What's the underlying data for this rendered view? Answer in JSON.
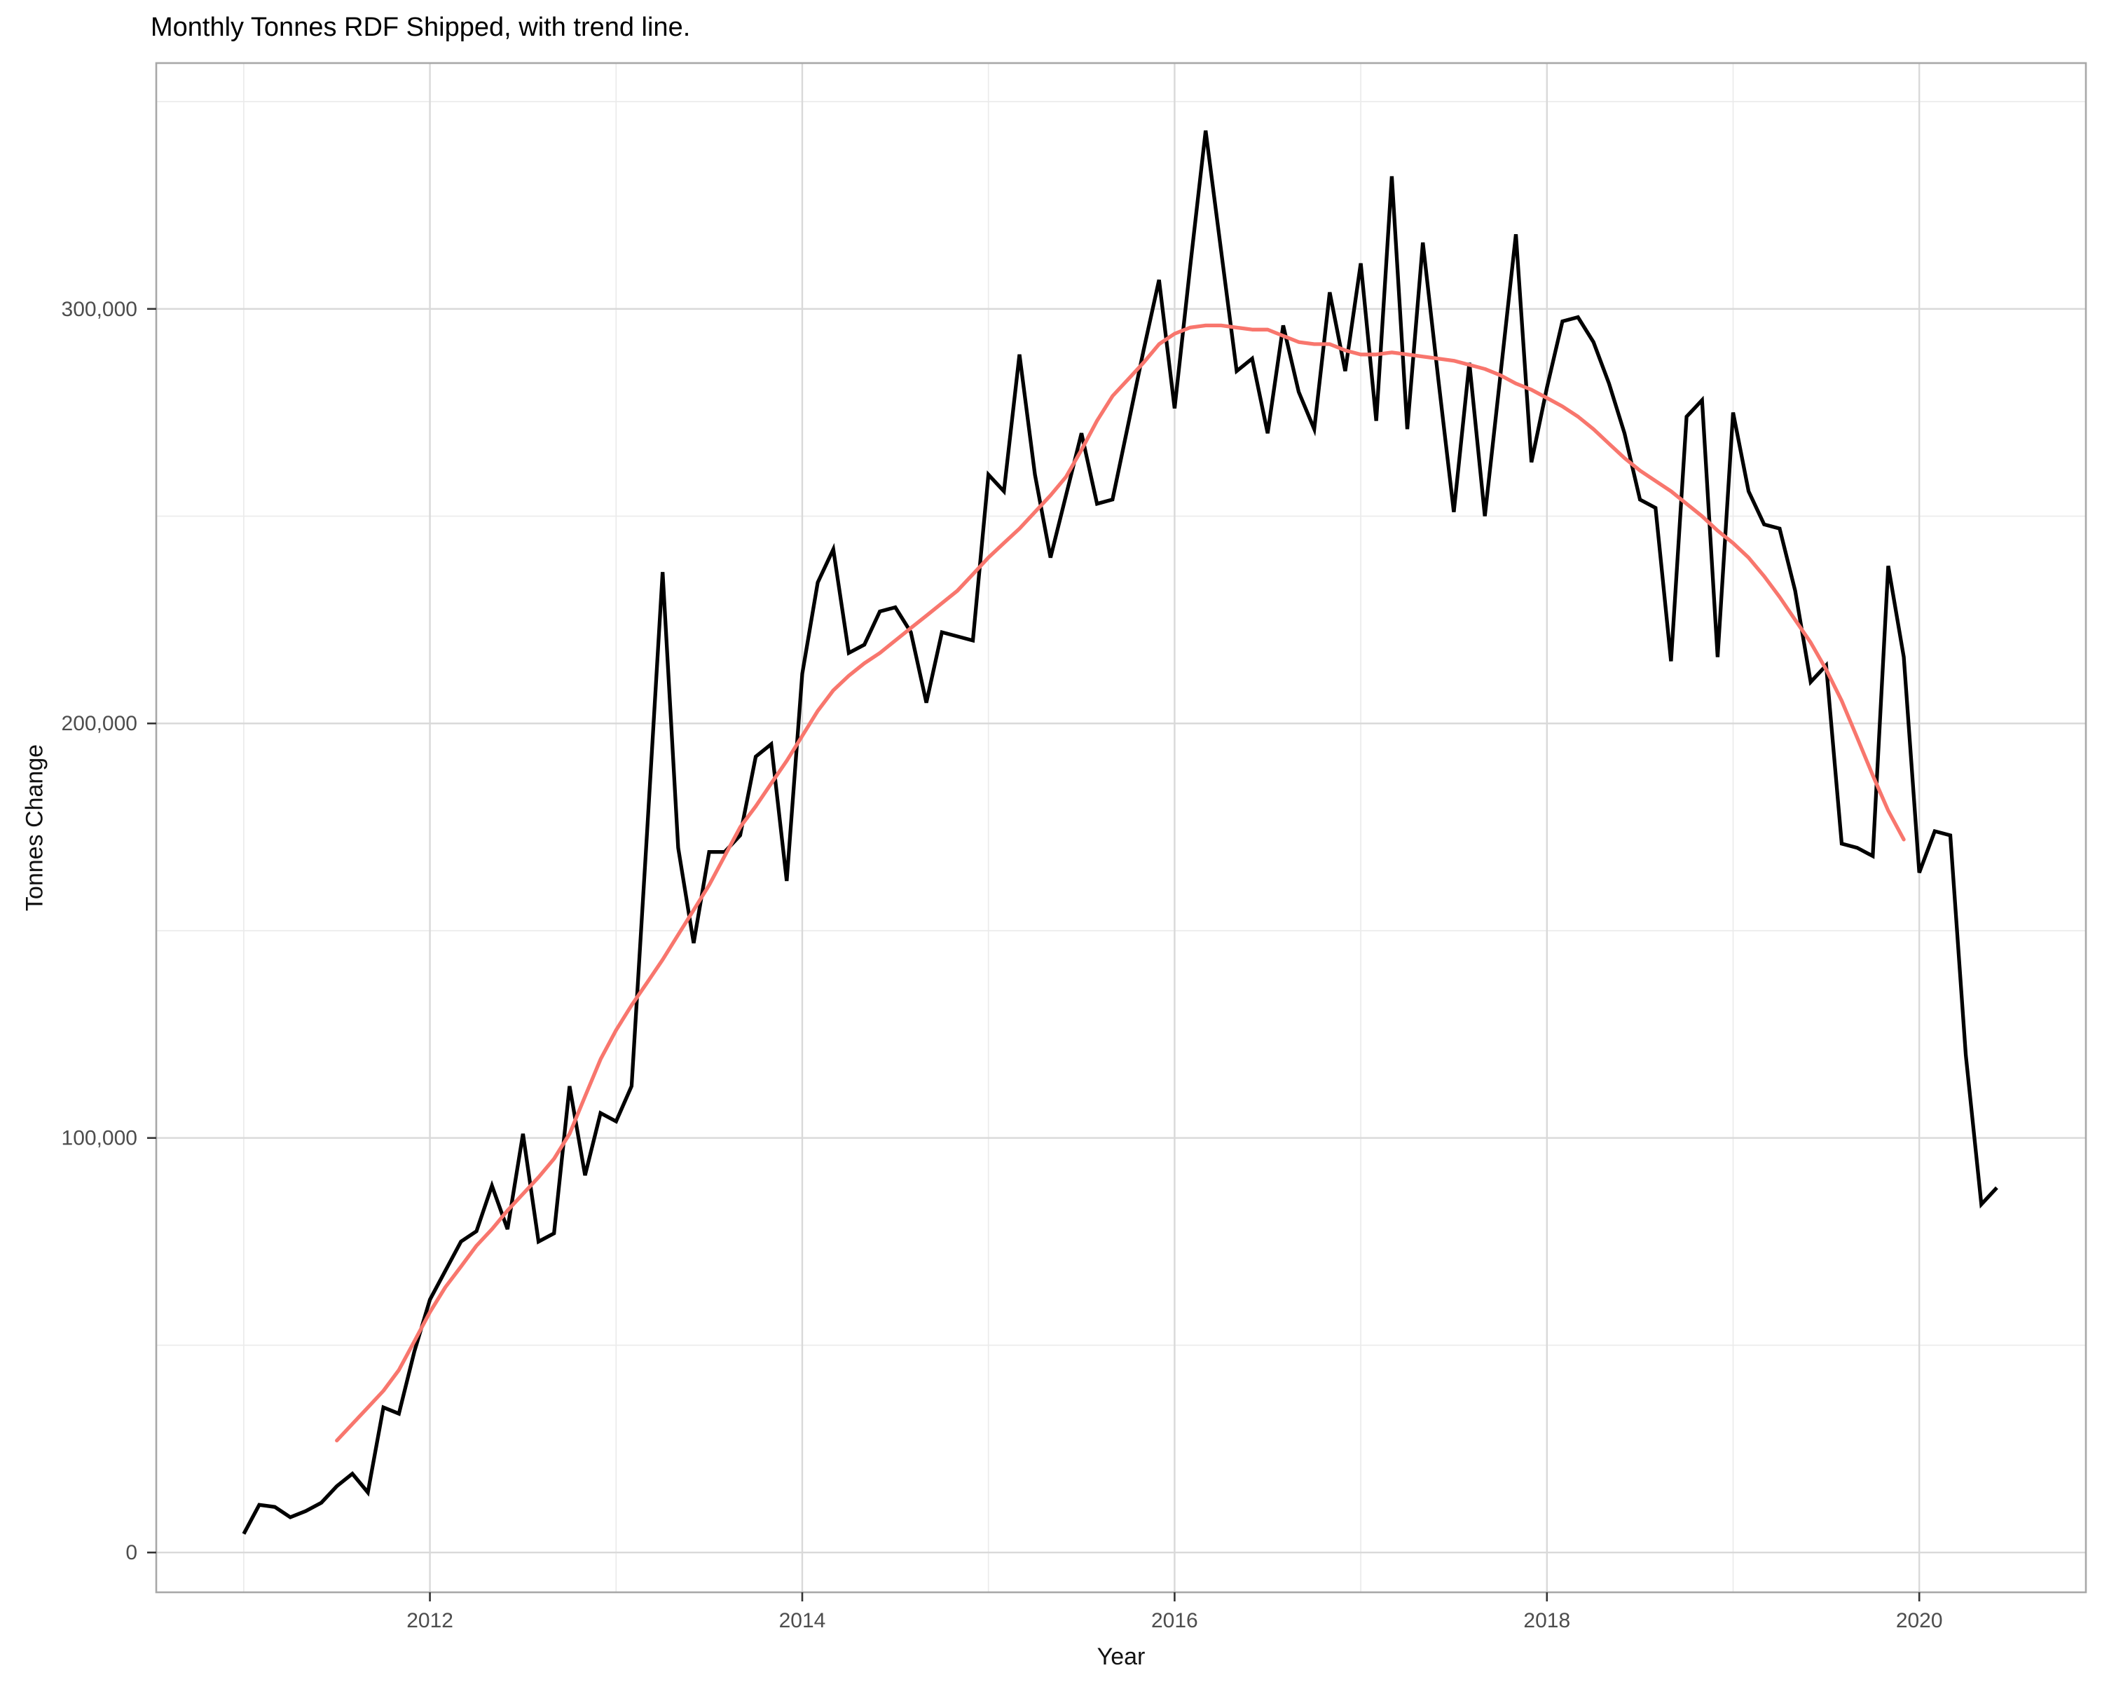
{
  "chart_data": {
    "type": "line",
    "title": "Monthly Tonnes RDF Shipped, with trend line.",
    "xlabel": "Year",
    "ylabel": "Tonnes Change",
    "grid": "on",
    "legend": "none",
    "x_range": [
      2010.53,
      2020.895
    ],
    "y_range": [
      -9600,
      359300
    ],
    "x_ticks": {
      "major": [
        2012,
        2014,
        2016,
        2018,
        2020
      ],
      "minor": [
        2011,
        2013,
        2015,
        2017,
        2019
      ],
      "labels": [
        "2012",
        "2014",
        "2016",
        "2018",
        "2020"
      ]
    },
    "y_ticks": {
      "major": [
        0,
        100000,
        200000,
        300000
      ],
      "minor": [
        50000,
        150000,
        250000,
        350000
      ],
      "labels": [
        "0",
        "100,000",
        "200,000",
        "300,000"
      ]
    },
    "colors": {
      "series": "#000000",
      "trend": "#F8766D",
      "grid_major": "#d9d9d9",
      "grid_minor": "#ebebeb",
      "panel_border": "#a8a8a8",
      "tick_mark": "#333333",
      "tick_label": "#4d4d4d"
    },
    "series": [
      {
        "name": "monthly-tonnes-shipped",
        "color": "#000000",
        "start_year": 2011,
        "start_month": 1,
        "frequency": "monthly",
        "values": [
          4500,
          11500,
          11000,
          8500,
          10000,
          12000,
          16000,
          19000,
          14500,
          35000,
          33500,
          48500,
          61000,
          68000,
          75000,
          77500,
          88500,
          78000,
          101000,
          75000,
          77000,
          112500,
          91000,
          106000,
          104000,
          112500,
          174000,
          236500,
          170000,
          147000,
          169000,
          169000,
          173000,
          192000,
          195000,
          162000,
          212000,
          234000,
          242000,
          217000,
          219000,
          227000,
          228000,
          222000,
          205000,
          222000,
          221000,
          220000,
          260000,
          256000,
          289000,
          260000,
          240000,
          255000,
          270000,
          253000,
          254000,
          272000,
          290000,
          307000,
          276000,
          310000,
          343000,
          314000,
          285000,
          288000,
          270000,
          296000,
          280000,
          271000,
          304000,
          285000,
          311000,
          273000,
          332000,
          271000,
          316000,
          283000,
          251000,
          287000,
          250000,
          284000,
          318000,
          263000,
          281000,
          297000,
          298000,
          292000,
          282000,
          270000,
          254000,
          252000,
          215000,
          274000,
          278000,
          216000,
          275000,
          256000,
          248000,
          247000,
          232000,
          210000,
          214000,
          171000,
          170000,
          168000,
          238000,
          216000,
          164000,
          174000,
          173000,
          120000,
          84000,
          88000
        ]
      },
      {
        "name": "trend-line",
        "color": "#F8766D",
        "points": [
          [
            2011.5,
            27000
          ],
          [
            2011.583,
            31000
          ],
          [
            2011.667,
            35000
          ],
          [
            2011.75,
            39000
          ],
          [
            2011.833,
            44000
          ],
          [
            2011.917,
            51000
          ],
          [
            2012.0,
            58000
          ],
          [
            2012.083,
            64000
          ],
          [
            2012.167,
            69000
          ],
          [
            2012.25,
            74000
          ],
          [
            2012.333,
            78000
          ],
          [
            2012.417,
            82500
          ],
          [
            2012.5,
            86500
          ],
          [
            2012.583,
            90500
          ],
          [
            2012.667,
            95000
          ],
          [
            2012.75,
            101000
          ],
          [
            2012.833,
            110000
          ],
          [
            2012.917,
            119000
          ],
          [
            2013.0,
            126000
          ],
          [
            2013.083,
            132000
          ],
          [
            2013.167,
            137500
          ],
          [
            2013.25,
            143000
          ],
          [
            2013.333,
            149000
          ],
          [
            2013.417,
            155000
          ],
          [
            2013.5,
            161000
          ],
          [
            2013.583,
            168000
          ],
          [
            2013.667,
            175000
          ],
          [
            2013.75,
            180000
          ],
          [
            2013.833,
            185500
          ],
          [
            2013.917,
            191000
          ],
          [
            2014.0,
            197000
          ],
          [
            2014.083,
            203000
          ],
          [
            2014.167,
            208000
          ],
          [
            2014.25,
            211500
          ],
          [
            2014.333,
            214500
          ],
          [
            2014.417,
            217000
          ],
          [
            2014.5,
            220000
          ],
          [
            2014.583,
            223000
          ],
          [
            2014.667,
            226000
          ],
          [
            2014.75,
            229000
          ],
          [
            2014.833,
            232000
          ],
          [
            2014.917,
            236000
          ],
          [
            2015.0,
            240000
          ],
          [
            2015.083,
            243500
          ],
          [
            2015.167,
            247000
          ],
          [
            2015.25,
            251000
          ],
          [
            2015.333,
            255000
          ],
          [
            2015.417,
            259500
          ],
          [
            2015.5,
            266000
          ],
          [
            2015.583,
            273000
          ],
          [
            2015.667,
            279000
          ],
          [
            2015.75,
            283000
          ],
          [
            2015.833,
            287000
          ],
          [
            2015.917,
            291500
          ],
          [
            2016.0,
            294000
          ],
          [
            2016.083,
            295500
          ],
          [
            2016.167,
            296000
          ],
          [
            2016.25,
            296000
          ],
          [
            2016.333,
            295500
          ],
          [
            2016.417,
            295000
          ],
          [
            2016.5,
            295000
          ],
          [
            2016.583,
            293500
          ],
          [
            2016.667,
            292000
          ],
          [
            2016.75,
            291500
          ],
          [
            2016.833,
            291500
          ],
          [
            2016.917,
            290000
          ],
          [
            2017.0,
            289000
          ],
          [
            2017.083,
            289000
          ],
          [
            2017.167,
            289500
          ],
          [
            2017.25,
            289000
          ],
          [
            2017.333,
            288500
          ],
          [
            2017.417,
            288000
          ],
          [
            2017.5,
            287500
          ],
          [
            2017.583,
            286500
          ],
          [
            2017.667,
            285500
          ],
          [
            2017.75,
            284000
          ],
          [
            2017.833,
            282000
          ],
          [
            2017.917,
            280500
          ],
          [
            2018.0,
            278500
          ],
          [
            2018.083,
            276500
          ],
          [
            2018.167,
            274000
          ],
          [
            2018.25,
            271000
          ],
          [
            2018.333,
            267500
          ],
          [
            2018.417,
            264000
          ],
          [
            2018.5,
            261000
          ],
          [
            2018.583,
            258500
          ],
          [
            2018.667,
            256000
          ],
          [
            2018.75,
            253000
          ],
          [
            2018.833,
            250000
          ],
          [
            2018.917,
            246500
          ],
          [
            2019.0,
            243500
          ],
          [
            2019.083,
            240000
          ],
          [
            2019.167,
            235500
          ],
          [
            2019.25,
            230500
          ],
          [
            2019.333,
            225000
          ],
          [
            2019.417,
            219500
          ],
          [
            2019.5,
            213000
          ],
          [
            2019.583,
            205500
          ],
          [
            2019.667,
            196500
          ],
          [
            2019.75,
            187500
          ],
          [
            2019.833,
            179000
          ],
          [
            2019.917,
            172000
          ]
        ]
      }
    ]
  }
}
